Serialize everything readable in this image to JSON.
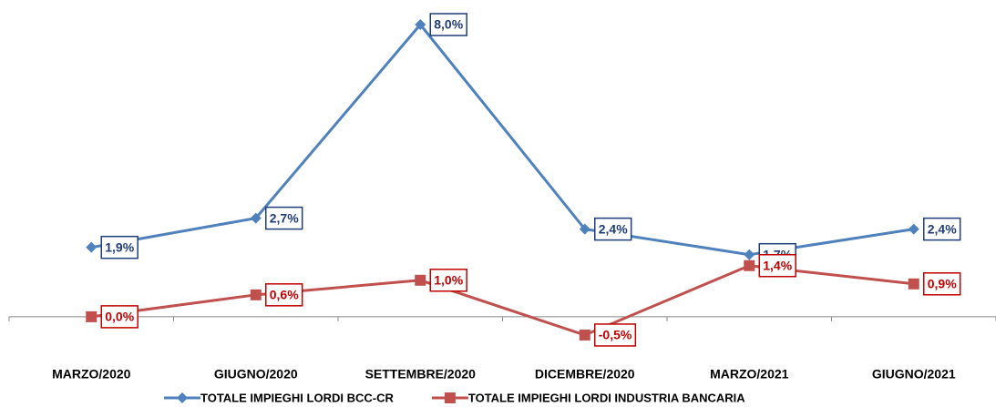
{
  "chart_data": {
    "type": "line",
    "categories": [
      "MARZO/2020",
      "GIUGNO/2020",
      "SETTEMBRE/2020",
      "DICEMBRE/2020",
      "MARZO/2021",
      "GIUGNO/2021"
    ],
    "series": [
      {
        "name": "TOTALE IMPIEGHI LORDI BCC-CR",
        "color": "#4f81bd",
        "label_color": "#1f3d7a",
        "marker": "diamond",
        "values": [
          1.9,
          2.7,
          8.0,
          2.4,
          1.7,
          2.4
        ],
        "value_labels": [
          "1,9%",
          "2,7%",
          "8,0%",
          "2,4%",
          "1,7%",
          "2,4%"
        ]
      },
      {
        "name": "TOTALE IMPIEGHI LORDI INDUSTRIA BANCARIA",
        "color": "#c0504d",
        "label_color": "#c00000",
        "marker": "square",
        "values": [
          0.0,
          0.6,
          1.0,
          -0.5,
          1.4,
          0.9
        ],
        "value_labels": [
          "0,0%",
          "0,6%",
          "1,0%",
          "-0,5%",
          "1,4%",
          "0,9%"
        ]
      }
    ],
    "ylim": [
      -1,
      8
    ],
    "legend": "bottom"
  }
}
